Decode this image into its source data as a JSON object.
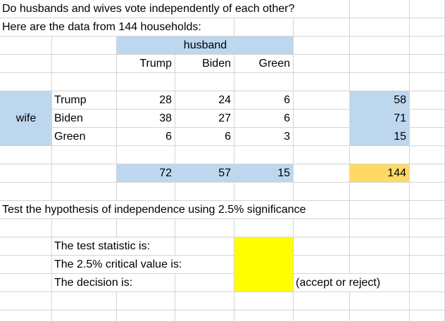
{
  "title": "Do husbands and wives vote independently of each other?",
  "subtitle": "Here are the data from 144 households:",
  "table": {
    "col_group_label": "husband",
    "row_group_label": "wife",
    "col_headers": [
      "Trump",
      "Biden",
      "Green"
    ],
    "row_headers": [
      "Trump",
      "Biden",
      "Green"
    ],
    "rows": [
      [
        28,
        24,
        6
      ],
      [
        38,
        27,
        6
      ],
      [
        6,
        6,
        3
      ]
    ],
    "row_totals": [
      58,
      71,
      15
    ],
    "col_totals": [
      72,
      57,
      15
    ],
    "grand_total": 144
  },
  "instruction": "Test the hypothesis of independence using 2.5% significance",
  "prompts": [
    {
      "label": "The test statistic is:",
      "answer": ""
    },
    {
      "label": "The 2.5% critical value is:",
      "answer": ""
    },
    {
      "label": "The decision is:",
      "answer": "",
      "note": "(accept or reject)"
    }
  ],
  "colors": {
    "header_fill": "#bdd7ee",
    "grand_total_fill": "#ffd966",
    "answer_fill": "#ffff00",
    "gridline": "#d4d4d4"
  }
}
